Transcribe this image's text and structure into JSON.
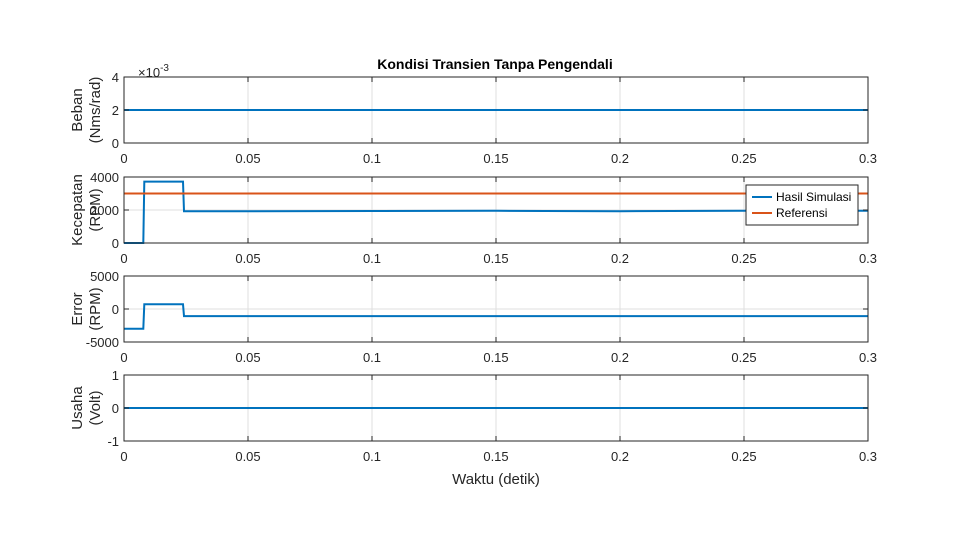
{
  "figure": {
    "title": "Kondisi Transien Tanpa Pengendali",
    "xlabel": "Waktu (detik)"
  },
  "chart_data": [
    {
      "type": "line",
      "ylabel": [
        "Beban",
        "(Nms/rad)"
      ],
      "xlim": [
        0,
        0.3
      ],
      "ylim": [
        0,
        0.004
      ],
      "yticks": [
        0,
        0.002,
        0.004
      ],
      "ytick_labels": [
        "0",
        "2",
        "4"
      ],
      "y_exponent_label": "×10",
      "y_exponent_power": "-3",
      "xticks": [
        0,
        0.05,
        0.1,
        0.15,
        0.2,
        0.25,
        0.3
      ],
      "xtick_labels": [
        "0",
        "0.05",
        "0.1",
        "0.15",
        "0.2",
        "0.25",
        "0.3"
      ],
      "grid": true,
      "series": [
        {
          "color": "#0072BD",
          "x": [
            0,
            0.3
          ],
          "y": [
            0.002,
            0.002
          ]
        }
      ]
    },
    {
      "type": "line",
      "ylabel": [
        "Kecepatan",
        "(RPM)"
      ],
      "xlim": [
        0,
        0.3
      ],
      "ylim": [
        0,
        4000
      ],
      "yticks": [
        0,
        2000,
        4000
      ],
      "ytick_labels": [
        "0",
        "2000",
        "4000"
      ],
      "xticks": [
        0,
        0.05,
        0.1,
        0.15,
        0.2,
        0.25,
        0.3
      ],
      "xtick_labels": [
        "0",
        "0.05",
        "0.1",
        "0.15",
        "0.2",
        "0.25",
        "0.3"
      ],
      "grid": true,
      "legend_position": "right",
      "series": [
        {
          "name": "Hasil Simulasi",
          "color": "#0072BD",
          "x": [
            0,
            0.0078,
            0.0082,
            0.0238,
            0.0242,
            0.05,
            0.1,
            0.15,
            0.2,
            0.25,
            0.3
          ],
          "y": [
            0,
            0,
            3720,
            3720,
            1920,
            1920,
            1940,
            1950,
            1930,
            1950,
            1960
          ]
        },
        {
          "name": "Referensi",
          "color": "#D95319",
          "x": [
            0,
            0.3
          ],
          "y": [
            3000,
            3000
          ]
        }
      ]
    },
    {
      "type": "line",
      "ylabel": [
        "Error",
        "(RPM)"
      ],
      "xlim": [
        0,
        0.3
      ],
      "ylim": [
        -5000,
        5000
      ],
      "yticks": [
        -5000,
        0,
        5000
      ],
      "ytick_labels": [
        "-5000",
        "0",
        "5000"
      ],
      "xticks": [
        0,
        0.05,
        0.1,
        0.15,
        0.2,
        0.25,
        0.3
      ],
      "xtick_labels": [
        "0",
        "0.05",
        "0.1",
        "0.15",
        "0.2",
        "0.25",
        "0.3"
      ],
      "grid": true,
      "series": [
        {
          "color": "#0072BD",
          "x": [
            0,
            0.0078,
            0.0082,
            0.0238,
            0.0242,
            0.3
          ],
          "y": [
            -3000,
            -3000,
            720,
            720,
            -1080,
            -1080
          ]
        }
      ]
    },
    {
      "type": "line",
      "ylabel": [
        "Usaha",
        "(Volt)"
      ],
      "xlim": [
        0,
        0.3
      ],
      "ylim": [
        -1,
        1
      ],
      "yticks": [
        -1,
        0,
        1
      ],
      "ytick_labels": [
        "-1",
        "0",
        "1"
      ],
      "xticks": [
        0,
        0.05,
        0.1,
        0.15,
        0.2,
        0.25,
        0.3
      ],
      "xtick_labels": [
        "0",
        "0.05",
        "0.1",
        "0.15",
        "0.2",
        "0.25",
        "0.3"
      ],
      "grid": true,
      "series": [
        {
          "color": "#0072BD",
          "x": [
            0,
            0.3
          ],
          "y": [
            0,
            0
          ]
        }
      ]
    }
  ]
}
